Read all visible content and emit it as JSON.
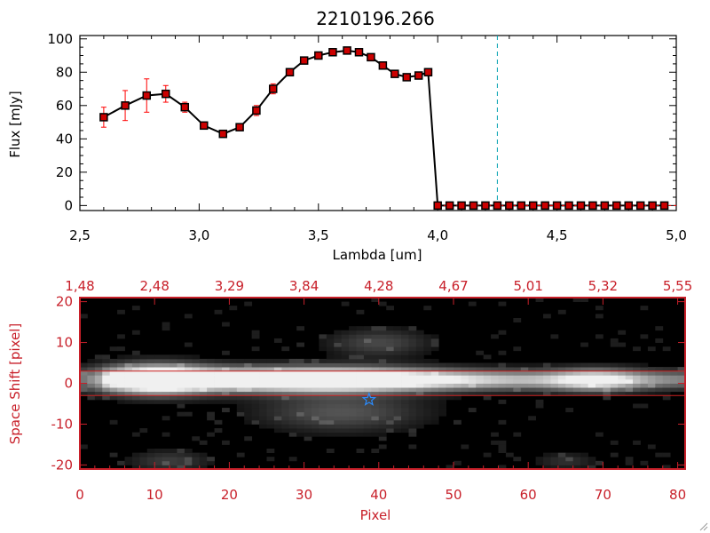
{
  "chart_data": [
    {
      "type": "line",
      "title": "2210196.266",
      "xlabel": "Lambda [um]",
      "ylabel": "Flux [mJy]",
      "xlim": [
        2.5,
        5.0
      ],
      "ylim": [
        -3,
        102
      ],
      "x_ticks": [
        "2.5",
        "3.0",
        "3.5",
        "4.0",
        "4.5",
        "5.0"
      ],
      "y_ticks": [
        "0",
        "20",
        "40",
        "60",
        "80",
        "100"
      ],
      "marker_vline_x": 4.25,
      "colors": {
        "line": "#000000",
        "marker": "#cc0000",
        "errorbar": "#ff0000",
        "vline": "#00a0b0"
      },
      "series": [
        {
          "x": [
            2.6,
            2.69,
            2.78,
            2.86,
            2.94,
            3.02,
            3.1,
            3.17,
            3.24,
            3.31,
            3.38,
            3.44,
            3.5,
            3.56,
            3.62,
            3.67,
            3.72,
            3.77,
            3.82,
            3.87,
            3.92,
            3.96,
            4.0,
            4.05,
            4.1,
            4.15,
            4.2,
            4.25,
            4.3,
            4.35,
            4.4,
            4.45,
            4.5,
            4.55,
            4.6,
            4.65,
            4.7,
            4.75,
            4.8,
            4.85,
            4.9,
            4.95
          ],
          "y": [
            53,
            60,
            66,
            67,
            59,
            48,
            43,
            47,
            57,
            70,
            80,
            87,
            90,
            92,
            93,
            92,
            89,
            84,
            79,
            77,
            78,
            80,
            0,
            0,
            0,
            0,
            0,
            0,
            0,
            0,
            0,
            0,
            0,
            0,
            0,
            0,
            0,
            0,
            0,
            0,
            0,
            0
          ],
          "yerr": [
            6,
            9,
            10,
            5,
            3,
            2,
            2,
            2,
            3,
            3,
            2,
            1,
            1,
            1,
            1,
            1,
            1,
            1,
            1,
            1,
            1,
            1,
            0,
            0,
            0,
            0,
            0,
            0,
            0,
            0,
            0,
            0,
            0,
            0,
            0,
            0,
            0,
            0,
            0,
            0,
            0,
            0
          ]
        }
      ]
    },
    {
      "type": "heatmap",
      "xlabel": "Pixel",
      "ylabel": "Space Shift [pixel]",
      "xlim": [
        0,
        81
      ],
      "ylim": [
        -21,
        21
      ],
      "x_ticks": [
        "0",
        "10",
        "20",
        "30",
        "40",
        "50",
        "60",
        "70",
        "80"
      ],
      "y_ticks": [
        "-20",
        "-10",
        "0",
        "10",
        "20"
      ],
      "top_ticks": [
        "1.48",
        "2.48",
        "3.29",
        "3.84",
        "4.28",
        "4.67",
        "5.01",
        "5.32",
        "5.55"
      ],
      "aperture_lines_y": [
        3,
        -3
      ],
      "source_marker": {
        "x": 38.7,
        "y": -4,
        "symbol": "star"
      },
      "colors": {
        "axes": "#c8202a",
        "aperture": "#cc2020",
        "star": "#2a8cff",
        "background": "#000000"
      },
      "features": [
        {
          "center_x": 10,
          "center_y": 1,
          "width": 5,
          "height": 2.6,
          "level": 1.0
        },
        {
          "center_x": 22,
          "center_y": 1,
          "width": 14,
          "height": 2.2,
          "level": 0.7
        },
        {
          "center_x": 36,
          "center_y": 1,
          "width": 10,
          "height": 2,
          "level": 0.65
        },
        {
          "center_x": 55,
          "center_y": 0.8,
          "width": 22,
          "height": 1.8,
          "level": 0.35
        },
        {
          "center_x": 69,
          "center_y": 0.8,
          "width": 4,
          "height": 2,
          "level": 0.55
        },
        {
          "center_x": 35,
          "center_y": -7,
          "width": 8,
          "height": 3.5,
          "level": 0.35
        },
        {
          "center_x": 40,
          "center_y": 10,
          "width": 5,
          "height": 2.5,
          "level": 0.3
        },
        {
          "center_x": 12,
          "center_y": -19,
          "width": 4,
          "height": 2,
          "level": 0.25
        },
        {
          "center_x": 65,
          "center_y": -19,
          "width": 3,
          "height": 1.5,
          "level": 0.2
        }
      ]
    }
  ]
}
